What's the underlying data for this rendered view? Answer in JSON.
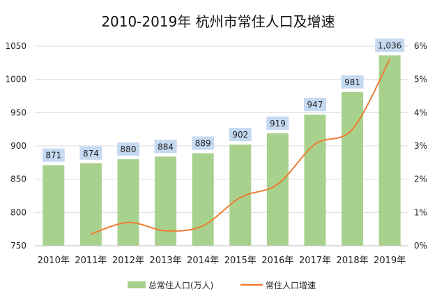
{
  "chart_data": {
    "type": "bar",
    "title": "2010-2019年 杭州市常住人口及增速",
    "categories": [
      "2010年",
      "2011年",
      "2012年",
      "2013年",
      "2014年",
      "2015年",
      "2016年",
      "2017年",
      "2018年",
      "2019年"
    ],
    "series": [
      {
        "name": "总常住人口(万人)",
        "type": "bar",
        "axis": "left",
        "color": "#a9d18e",
        "values": [
          871,
          874,
          880,
          884,
          889,
          902,
          919,
          947,
          981,
          1036
        ],
        "labels": [
          "871",
          "874",
          "880",
          "884",
          "889",
          "902",
          "919",
          "947",
          "981",
          "1,036"
        ]
      },
      {
        "name": "常住人口增速",
        "type": "line",
        "axis": "right",
        "color": "#ed7d31",
        "values": [
          null,
          0.35,
          0.7,
          0.45,
          0.6,
          1.45,
          1.85,
          3.05,
          3.5,
          5.6
        ]
      }
    ],
    "y_left": {
      "min": 750,
      "max": 1050,
      "ticks": [
        "750",
        "800",
        "850",
        "900",
        "950",
        "1000",
        "1050"
      ]
    },
    "y_right": {
      "min": 0,
      "max": 6,
      "ticks": [
        "0%",
        "1%",
        "2%",
        "3%",
        "4%",
        "5%",
        "6%"
      ]
    },
    "grid": true,
    "legend_position": "bottom",
    "label_box_color": "#c5d9f1"
  }
}
